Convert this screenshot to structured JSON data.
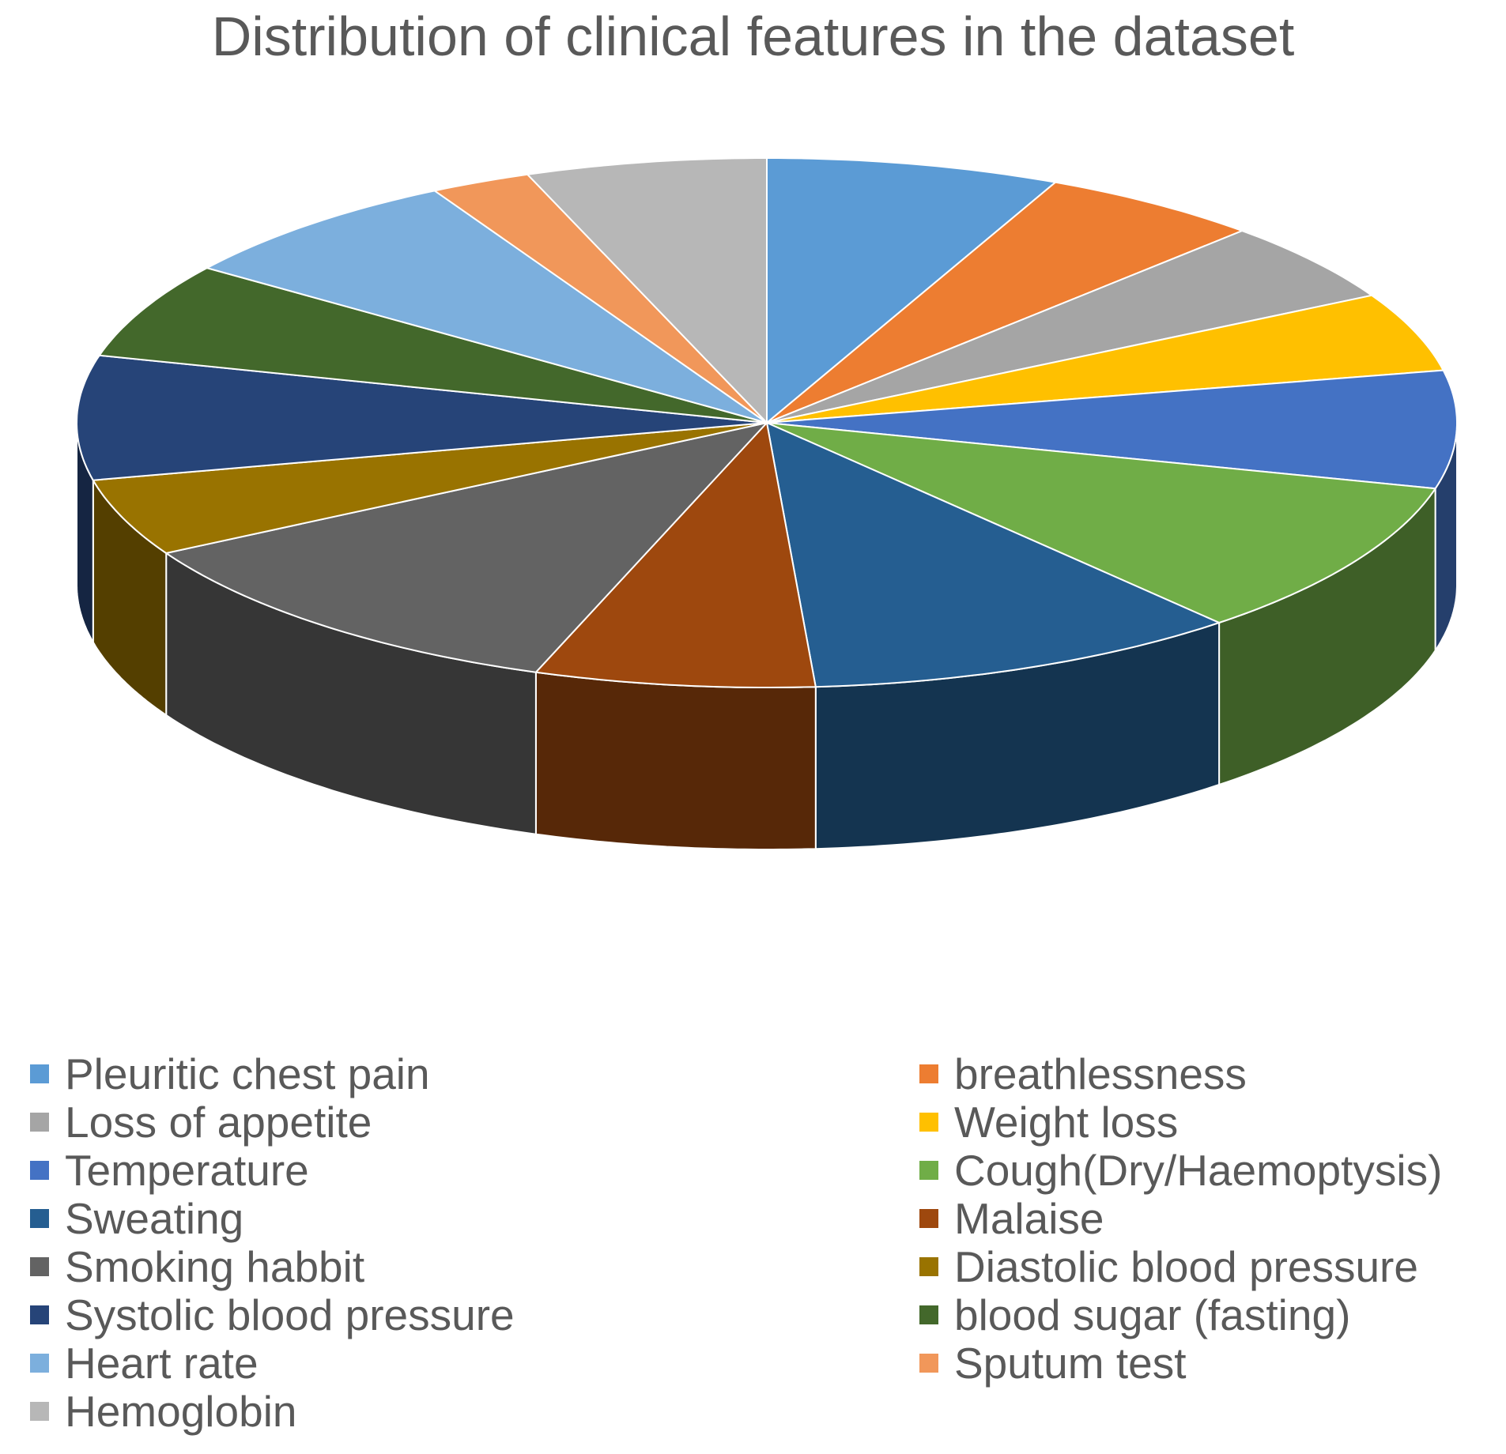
{
  "chart_data": {
    "type": "pie",
    "title": "Distribution of clinical features in the dataset",
    "legend_position": "bottom",
    "slices": [
      {
        "label": "Pleuritic chest pain",
        "value": 6.7,
        "color": "#5B9BD5"
      },
      {
        "label": "breathlessness",
        "value": 5.1,
        "color": "#ED7D31"
      },
      {
        "label": "Loss of appetite",
        "value": 4.8,
        "color": "#A5A5A5"
      },
      {
        "label": "Weight loss",
        "value": 4.7,
        "color": "#FFC000"
      },
      {
        "label": "Temperature",
        "value": 7.0,
        "color": "#4472C4"
      },
      {
        "label": "Cough(Dry/Haemoptysis)",
        "value": 9.4,
        "color": "#70AD47"
      },
      {
        "label": "Sweating",
        "value": 10.0,
        "color": "#255E91"
      },
      {
        "label": "Malaise",
        "value": 6.4,
        "color": "#9E480E"
      },
      {
        "label": "Smoking habbit",
        "value": 11.1,
        "color": "#636363"
      },
      {
        "label": "Diastolic blood pressure",
        "value": 4.6,
        "color": "#997300"
      },
      {
        "label": "Systolic blood pressure",
        "value": 7.4,
        "color": "#264478"
      },
      {
        "label": "blood sugar (fasting)",
        "value": 5.7,
        "color": "#43682B"
      },
      {
        "label": "Heart rate",
        "value": 6.9,
        "color": "#7CAFDD"
      },
      {
        "label": "Sputum test",
        "value": 2.3,
        "color": "#F1975A"
      },
      {
        "label": "Hemoglobin",
        "value": 5.5,
        "color": "#B7B7B7"
      }
    ]
  }
}
